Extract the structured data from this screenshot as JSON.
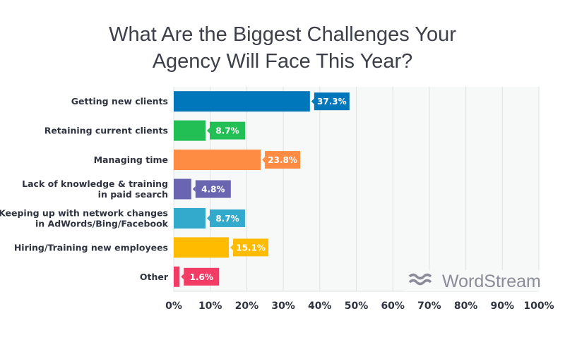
{
  "chart_data": {
    "type": "bar",
    "orientation": "horizontal",
    "title": "What Are the Biggest Challenges Your Agency Will Face This Year?",
    "title_lines": [
      "What Are the Biggest Challenges Your",
      "Agency Will Face This Year?"
    ],
    "categories": [
      [
        "Getting new clients"
      ],
      [
        "Retaining current clients"
      ],
      [
        "Managing time"
      ],
      [
        "Lack of knowledge & training",
        "in paid search"
      ],
      [
        "Keeping up with network changes",
        "in AdWords/Bing/Facebook"
      ],
      [
        "Hiring/Training new employees"
      ],
      [
        "Other"
      ]
    ],
    "values": [
      37.3,
      8.7,
      23.8,
      4.8,
      8.7,
      15.1,
      1.6
    ],
    "data_labels": [
      "37.3%",
      "8.7%",
      "23.8%",
      "4.8%",
      "8.7%",
      "15.1%",
      "1.6%"
    ],
    "colors": [
      "#0077bb",
      "#22bf55",
      "#ff8c42",
      "#6a65b1",
      "#33aacc",
      "#ffbb00",
      "#f23c66"
    ],
    "xlim": [
      0,
      100
    ],
    "xticks": [
      "0%",
      "10%",
      "20%",
      "30%",
      "40%",
      "50%",
      "60%",
      "70%",
      "80%",
      "90%",
      "100%"
    ],
    "grid": true,
    "plot_background": "#f7f8f8",
    "watermark": "WordStream"
  }
}
